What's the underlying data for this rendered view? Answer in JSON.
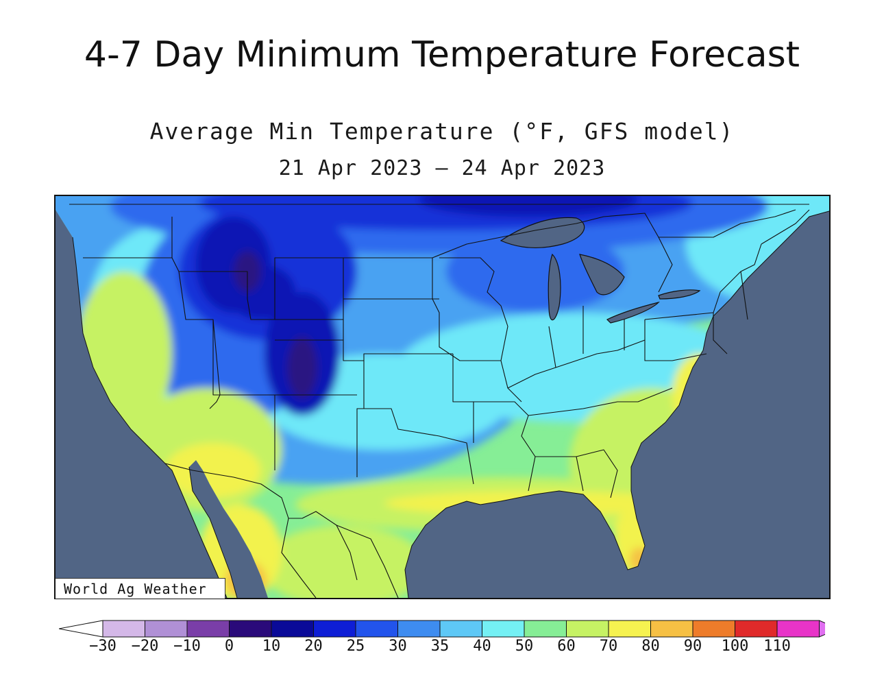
{
  "page": {
    "title": "4-7 Day Minimum Temperature Forecast"
  },
  "map": {
    "title": "Average Min Temperature (°F, GFS model)",
    "date_range": "21 Apr 2023 — 24 Apr 2023",
    "credit": "World Ag Weather",
    "colors": {
      "ocean_lakes": "#516585",
      "below_0": "#2a1282",
      "10_20": "#0c14b4",
      "20_25": "#1232d8",
      "25_30": "#2e6aee",
      "30_35": "#4aa2f2",
      "35_40": "#6ee8f8",
      "40_50": "#84ee9e",
      "50_60": "#c6f264",
      "60_70": "#f2f24e",
      "70_80": "#f4c244",
      "80_90": "#ef8a2c"
    }
  },
  "legend": {
    "labels": [
      "−30",
      "−20",
      "−10",
      "0",
      "10",
      "20",
      "25",
      "30",
      "35",
      "40",
      "50",
      "60",
      "70",
      "80",
      "90",
      "100",
      "110"
    ],
    "colors": [
      "#d4b8e8",
      "#b090d6",
      "#7a3ea8",
      "#2a0a7a",
      "#0a0a98",
      "#0e1ed6",
      "#2254ec",
      "#3e8cf0",
      "#5ec8f6",
      "#74f0f4",
      "#86ee96",
      "#c6f264",
      "#f6f250",
      "#f6c044",
      "#ee7c2a",
      "#e02a2a",
      "#e834c8"
    ],
    "low_arrow_color": "#ffffff",
    "high_arrow_color": "#e070f0"
  }
}
